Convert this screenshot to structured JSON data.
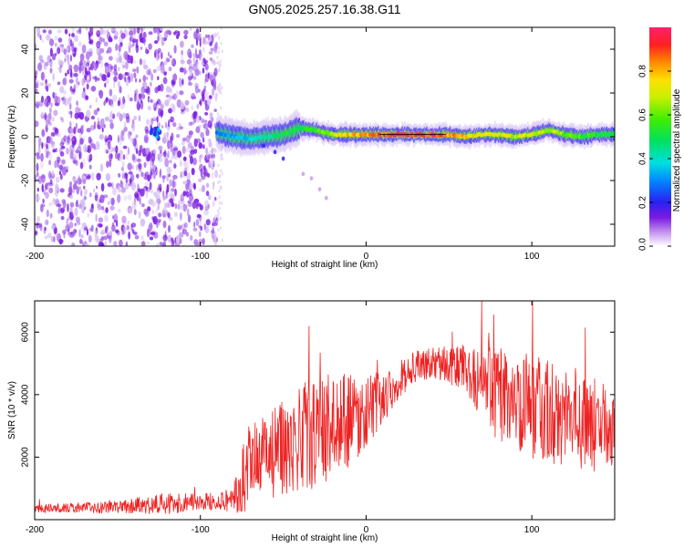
{
  "figure_title": "GN05.2025.257.16.38.G11",
  "chart_data": [
    {
      "type": "heatmap",
      "panel": "top",
      "title": "GN05.2025.257.16.38.G11",
      "xlabel": "Height of straight line (km)",
      "ylabel": "Frequency (Hz)",
      "xlim": [
        -200,
        150
      ],
      "ylim": [
        -50,
        50
      ],
      "x_ticks": [
        -200,
        -100,
        0,
        100
      ],
      "x_tick_labels": [
        "-200",
        "-100",
        "0",
        "100"
      ],
      "y_ticks": [
        -40,
        -20,
        0,
        20,
        40
      ],
      "y_tick_labels": [
        "-40",
        "-20",
        "0",
        "20",
        "40"
      ],
      "noise_region_x": [
        -200,
        -90
      ],
      "signal_track": {
        "x": [
          -90,
          -80,
          -70,
          -60,
          -50,
          -40,
          -30,
          -20,
          -10,
          0,
          10,
          20,
          30,
          40,
          50,
          60,
          70,
          80,
          90,
          100,
          110,
          120,
          130,
          140,
          150
        ],
        "freq": [
          2,
          0,
          -1,
          0,
          1,
          4,
          3,
          1,
          1,
          1,
          1,
          1,
          1,
          1,
          1,
          0,
          1,
          1,
          0,
          1,
          3,
          1,
          0,
          1,
          1
        ],
        "peak_amplitude": [
          0.3,
          0.35,
          0.4,
          0.45,
          0.5,
          0.55,
          0.6,
          0.7,
          0.8,
          0.85,
          0.95,
          1.0,
          1.0,
          0.95,
          0.85,
          0.8,
          0.75,
          0.75,
          0.7,
          0.75,
          0.7,
          0.65,
          0.6,
          0.55,
          0.5
        ]
      },
      "side_blobs": [
        {
          "x": -62,
          "freq": -4
        },
        {
          "x": -55,
          "freq": -7
        },
        {
          "x": -50,
          "freq": -10
        },
        {
          "x": -38,
          "freq": -17
        },
        {
          "x": -33,
          "freq": -19
        },
        {
          "x": -28,
          "freq": -24
        },
        {
          "x": -24,
          "freq": -28
        }
      ],
      "colorbar": {
        "label": "Normalized spectral amplitude",
        "range": [
          0,
          1
        ],
        "ticks": [
          0.0,
          0.2,
          0.4,
          0.6,
          0.8
        ],
        "tick_labels": [
          "0.0",
          "0.2",
          "0.4",
          "0.6",
          "0.8"
        ]
      }
    },
    {
      "type": "line",
      "panel": "bottom",
      "xlabel": "Height of straight line (km)",
      "ylabel": "SNR (10 * v/v)",
      "xlim": [
        -200,
        150
      ],
      "ylim": [
        0,
        7000
      ],
      "x_ticks": [
        -200,
        -100,
        0,
        100
      ],
      "x_tick_labels": [
        "-200",
        "-100",
        "0",
        "100"
      ],
      "y_ticks": [
        2000,
        4000,
        6000
      ],
      "y_tick_labels": [
        "2000",
        "4000",
        "6000"
      ],
      "series": [
        {
          "name": "SNR",
          "color": "#ee2222",
          "envelope_x": [
            -200,
            -180,
            -160,
            -140,
            -120,
            -100,
            -90,
            -80,
            -75,
            -70,
            -60,
            -50,
            -40,
            -30,
            -20,
            -10,
            0,
            10,
            20,
            30,
            40,
            50,
            60,
            70,
            80,
            90,
            100,
            110,
            120,
            130,
            140,
            150
          ],
          "envelope_mean": [
            350,
            380,
            400,
            450,
            500,
            550,
            600,
            650,
            1200,
            1700,
            1900,
            2300,
            2600,
            2800,
            3000,
            3200,
            3400,
            3900,
            4500,
            4900,
            5000,
            5000,
            4700,
            4400,
            4000,
            3800,
            3600,
            3500,
            3300,
            3100,
            3000,
            2800
          ],
          "envelope_spread": [
            150,
            150,
            200,
            250,
            350,
            300,
            250,
            500,
            1200,
            1400,
            1500,
            1600,
            1700,
            1800,
            1700,
            1500,
            1200,
            900,
            600,
            500,
            500,
            600,
            900,
            1300,
            1500,
            1600,
            1700,
            1700,
            1600,
            1500,
            1500,
            1400
          ],
          "peak_max": 7000
        }
      ]
    }
  ],
  "colors": {
    "line": "#ee2222",
    "axis": "#000000",
    "background": "#ffffff"
  }
}
